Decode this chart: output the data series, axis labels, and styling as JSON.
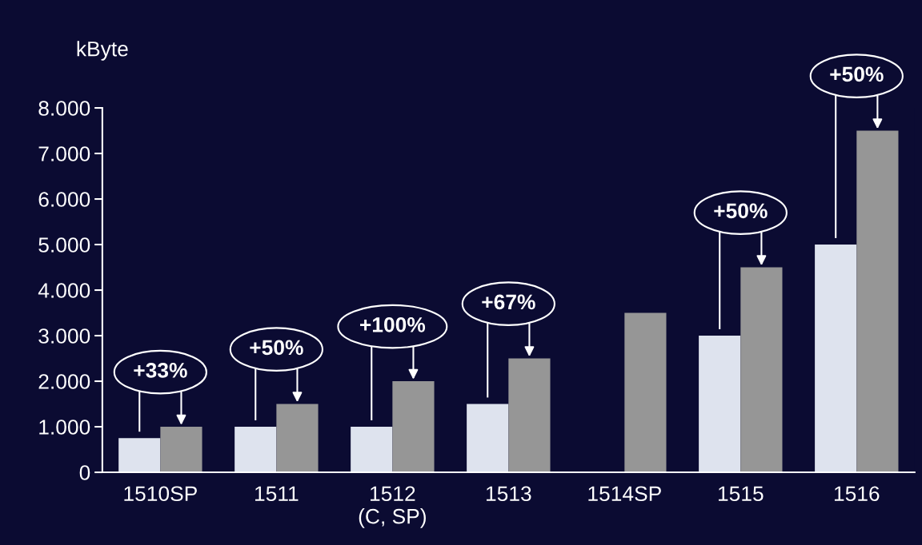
{
  "chart_data": {
    "type": "bar",
    "ylabel": "kByte",
    "categories": [
      "1510SP",
      "1511",
      "1512\n(C, SP)",
      "1513",
      "1514SP",
      "1515",
      "1516"
    ],
    "series": [
      {
        "color": "#dee3ee",
        "values": [
          750,
          1000,
          1000,
          1500,
          null,
          3000,
          5000
        ]
      },
      {
        "color": "#969696",
        "values": [
          1000,
          1500,
          2000,
          2500,
          3500,
          4500,
          7500
        ]
      }
    ],
    "ylim": [
      0,
      8000
    ],
    "yticks": [
      0,
      {
        "value": 1000,
        "label": "1.000"
      },
      {
        "value": 2000,
        "label": "2.000"
      },
      {
        "value": 3000,
        "label": "3.000"
      },
      {
        "value": 4000,
        "label": "4.000"
      },
      {
        "value": 5000,
        "label": "5.000"
      },
      {
        "value": 6000,
        "label": "6.000"
      },
      {
        "value": 7000,
        "label": "7.000"
      },
      {
        "value": 8000,
        "label": "8.000"
      }
    ],
    "grid": false,
    "legend": false,
    "annotations": [
      {
        "text": "+33%",
        "x": "1510SP",
        "y": 1000
      },
      {
        "text": "+50%",
        "x": "1511",
        "y": 1500
      },
      {
        "text": "+100%",
        "x": "1512\n(C, SP)",
        "y": 2000
      },
      {
        "text": "+67%",
        "x": "1513",
        "y": 2500
      },
      {
        "text": "+50%",
        "x": "1515",
        "y": 4500
      },
      {
        "text": "+50%",
        "x": "1516",
        "y": 7500
      }
    ]
  }
}
